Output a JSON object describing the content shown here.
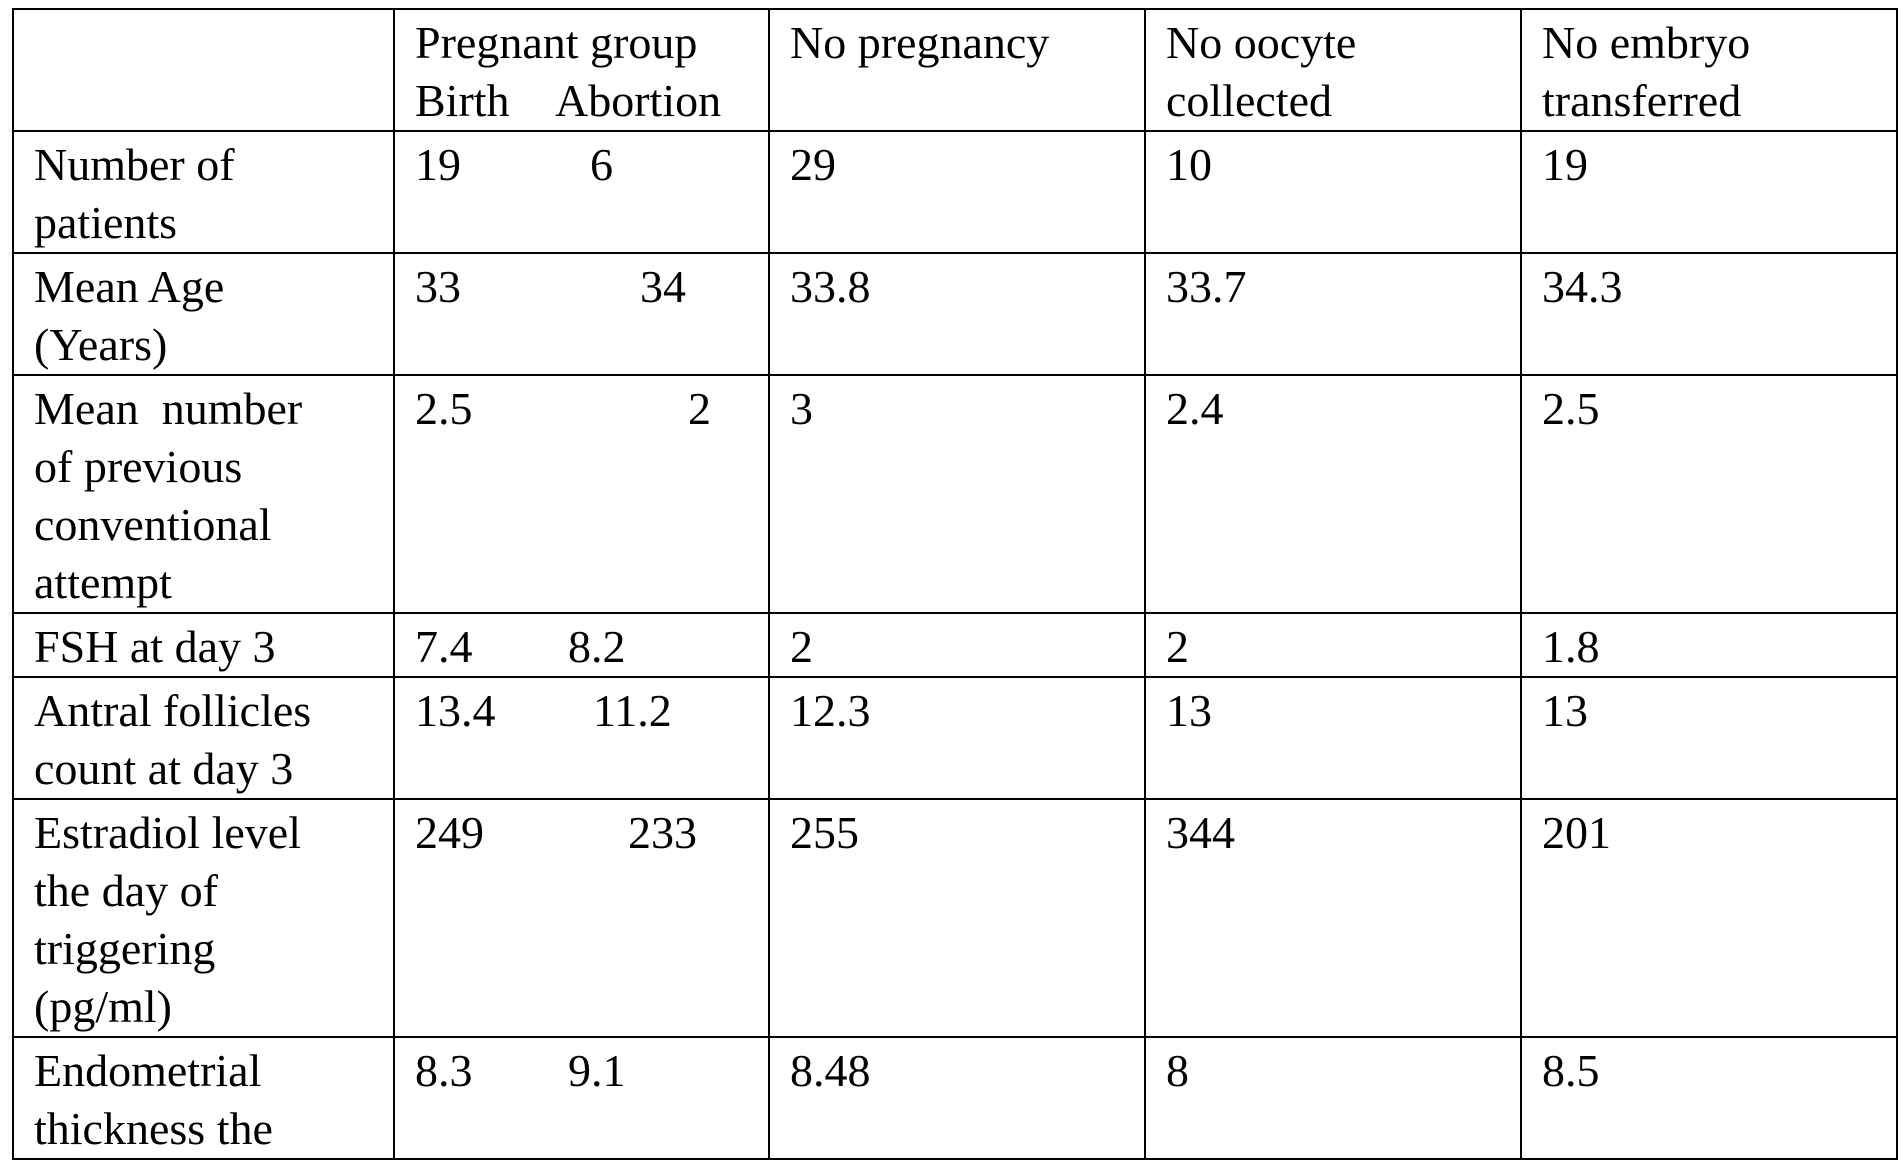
{
  "table": {
    "headers": {
      "label": "",
      "pregnant_group": "Pregnant group",
      "birth": "Birth",
      "abortion": "Abortion",
      "no_pregnancy": "No pregnancy",
      "no_oocyte_line1": "No oocyte",
      "no_oocyte_line2": "collected",
      "no_embryo_line1": "No embryo",
      "no_embryo_line2": "transferred"
    },
    "rows": [
      {
        "label_lines": [
          "Number of",
          "patients"
        ],
        "birth": "19",
        "abortion": "6",
        "no_pregnancy": "29",
        "no_oocyte": "10",
        "no_embryo": "19"
      },
      {
        "label_lines": [
          "Mean Age",
          "(Years)"
        ],
        "birth": "33",
        "abortion": "34",
        "no_pregnancy": "33.8",
        "no_oocyte": "33.7",
        "no_embryo": "34.3"
      },
      {
        "label_lines": [
          "Mean  number",
          "of previous",
          "conventional",
          "attempt"
        ],
        "birth": "2.5",
        "abortion": "2",
        "no_pregnancy": "3",
        "no_oocyte": "2.4",
        "no_embryo": "2.5"
      },
      {
        "label_lines": [
          "FSH at day 3"
        ],
        "birth": "7.4",
        "abortion": "8.2",
        "no_pregnancy": "2",
        "no_oocyte": "2",
        "no_embryo": "1.8"
      },
      {
        "label_lines": [
          "Antral follicles",
          "count at day 3"
        ],
        "birth": "13.4",
        "abortion": "11.2",
        "no_pregnancy": "12.3",
        "no_oocyte": "13",
        "no_embryo": "13"
      },
      {
        "label_lines": [
          "Estradiol level",
          "the day of",
          "triggering",
          "(pg/ml)"
        ],
        "birth": "249",
        "abortion": "233",
        "no_pregnancy": "255",
        "no_oocyte": "344",
        "no_embryo": "201"
      },
      {
        "label_lines": [
          "Endometrial",
          "thickness the"
        ],
        "birth": "8.3",
        "abortion": "9.1",
        "no_pregnancy": "8.48",
        "no_oocyte": "8",
        "no_embryo": "8.5"
      }
    ]
  }
}
